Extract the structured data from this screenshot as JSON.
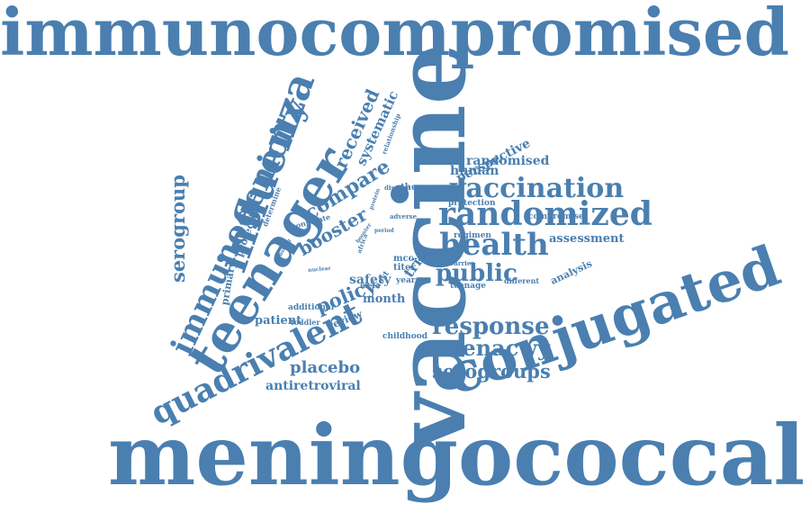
{
  "color": "#4a7fb0",
  "words": [
    "immunocompromised",
    "meningococcal",
    "vaccine",
    "teenager",
    "conjugated",
    "influenza",
    "immunogenicity",
    "quadrivalent",
    "randomized",
    "vaccination",
    "health",
    "response",
    "menacwy",
    "public",
    "serogroups",
    "serogroup",
    "compare",
    "received",
    "booster",
    "policy",
    "placebo",
    "antiretroviral",
    "patient",
    "month",
    "safety",
    "trial",
    "randomised",
    "human",
    "perspective",
    "systematic",
    "assessment",
    "analysis",
    "review",
    "primary",
    "protective",
    "determine",
    "therapy",
    "compromise",
    "protection",
    "regimen",
    "mcc-tt",
    "titer",
    "additional",
    "toddler",
    "childhood",
    "teenage",
    "different",
    "carrier",
    "meta",
    "year",
    "boosting",
    "conjugate",
    "disease",
    "adverse",
    "africa",
    "period",
    "relationship",
    "protein",
    "nuclear",
    "study",
    "host",
    "booster"
  ]
}
